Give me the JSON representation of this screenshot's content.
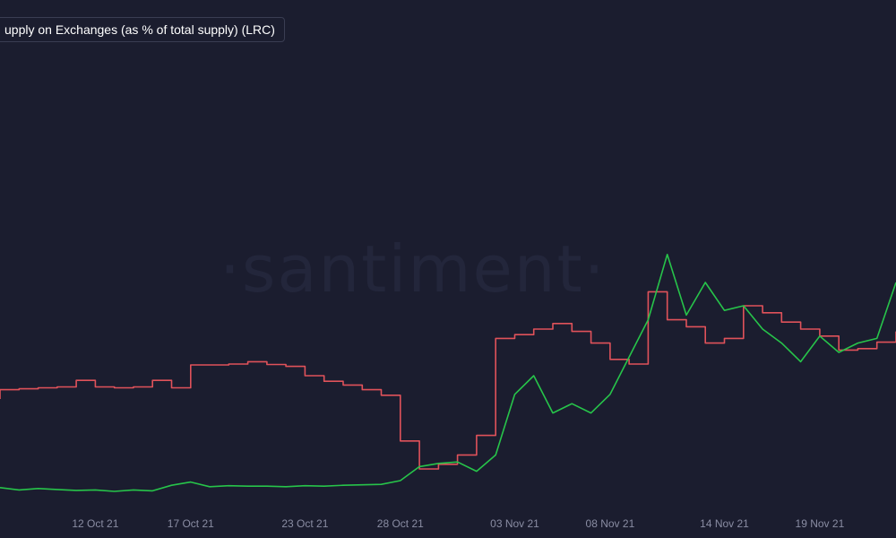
{
  "legend": {
    "label": "upply on Exchanges (as % of total supply) (LRC)"
  },
  "watermark": "·santiment·",
  "colors": {
    "background": "#1b1d2f",
    "price_line": "#27c44a",
    "supply_line": "#e0525a",
    "tick_text": "#8a8da3"
  },
  "chart_data": {
    "type": "line",
    "title": "",
    "x_ticks": [
      "12 Oct 21",
      "17 Oct 21",
      "23 Oct 21",
      "28 Oct 21",
      "03 Nov 21",
      "08 Nov 21",
      "14 Nov 21",
      "19 Nov 21"
    ],
    "x_range": [
      "2021-10-07",
      "2021-11-23"
    ],
    "series": [
      {
        "name": "",
        "color": "#e0525a",
        "shape": "step",
        "unit": "% of total supply (relative)",
        "points": [
          [
            "2021-10-07",
            0.25
          ],
          [
            "2021-10-07",
            0.27
          ],
          [
            "2021-10-08",
            0.27
          ],
          [
            "2021-10-08",
            0.272
          ],
          [
            "2021-10-09",
            0.272
          ],
          [
            "2021-10-09",
            0.274
          ],
          [
            "2021-10-10",
            0.274
          ],
          [
            "2021-10-10",
            0.276
          ],
          [
            "2021-10-11",
            0.276
          ],
          [
            "2021-10-11",
            0.29
          ],
          [
            "2021-10-11",
            0.29
          ],
          [
            "2021-10-12",
            0.29
          ],
          [
            "2021-10-12",
            0.276
          ],
          [
            "2021-10-13",
            0.276
          ],
          [
            "2021-10-13",
            0.274
          ],
          [
            "2021-10-14",
            0.274
          ],
          [
            "2021-10-14",
            0.276
          ],
          [
            "2021-10-15",
            0.276
          ],
          [
            "2021-10-15",
            0.29
          ],
          [
            "2021-10-16",
            0.29
          ],
          [
            "2021-10-16",
            0.274
          ],
          [
            "2021-10-17",
            0.274
          ],
          [
            "2021-10-17",
            0.323
          ],
          [
            "2021-10-19",
            0.323
          ],
          [
            "2021-10-19",
            0.325
          ],
          [
            "2021-10-20",
            0.325
          ],
          [
            "2021-10-20",
            0.33
          ],
          [
            "2021-10-21",
            0.33
          ],
          [
            "2021-10-21",
            0.324
          ],
          [
            "2021-10-22",
            0.324
          ],
          [
            "2021-10-22",
            0.32
          ],
          [
            "2021-10-23",
            0.32
          ],
          [
            "2021-10-23",
            0.3
          ],
          [
            "2021-10-24",
            0.3
          ],
          [
            "2021-10-24",
            0.288
          ],
          [
            "2021-10-25",
            0.288
          ],
          [
            "2021-10-25",
            0.28
          ],
          [
            "2021-10-26",
            0.28
          ],
          [
            "2021-10-26",
            0.27
          ],
          [
            "2021-10-27",
            0.27
          ],
          [
            "2021-10-27",
            0.258
          ],
          [
            "2021-10-28",
            0.258
          ],
          [
            "2021-10-28",
            0.16
          ],
          [
            "2021-10-29",
            0.16
          ],
          [
            "2021-10-29",
            0.1
          ],
          [
            "2021-10-30",
            0.1
          ],
          [
            "2021-10-30",
            0.11
          ],
          [
            "2021-10-31",
            0.11
          ],
          [
            "2021-10-31",
            0.13
          ],
          [
            "2021-11-01",
            0.13
          ],
          [
            "2021-11-01",
            0.172
          ],
          [
            "2021-11-02",
            0.172
          ],
          [
            "2021-11-02",
            0.38
          ],
          [
            "2021-11-03",
            0.38
          ],
          [
            "2021-11-03",
            0.388
          ],
          [
            "2021-11-04",
            0.388
          ],
          [
            "2021-11-04",
            0.4
          ],
          [
            "2021-11-05",
            0.4
          ],
          [
            "2021-11-05",
            0.412
          ],
          [
            "2021-11-06",
            0.412
          ],
          [
            "2021-11-06",
            0.395
          ],
          [
            "2021-11-07",
            0.395
          ],
          [
            "2021-11-07",
            0.37
          ],
          [
            "2021-11-08",
            0.37
          ],
          [
            "2021-11-08",
            0.335
          ],
          [
            "2021-11-09",
            0.335
          ],
          [
            "2021-11-09",
            0.325
          ],
          [
            "2021-11-10",
            0.325
          ],
          [
            "2021-11-10",
            0.48
          ],
          [
            "2021-11-11",
            0.48
          ],
          [
            "2021-11-11",
            0.42
          ],
          [
            "2021-11-12",
            0.42
          ],
          [
            "2021-11-12",
            0.405
          ],
          [
            "2021-11-13",
            0.405
          ],
          [
            "2021-11-13",
            0.37
          ],
          [
            "2021-11-14",
            0.37
          ],
          [
            "2021-11-14",
            0.38
          ],
          [
            "2021-11-15",
            0.38
          ],
          [
            "2021-11-15",
            0.45
          ],
          [
            "2021-11-16",
            0.45
          ],
          [
            "2021-11-16",
            0.435
          ],
          [
            "2021-11-17",
            0.435
          ],
          [
            "2021-11-17",
            0.415
          ],
          [
            "2021-11-18",
            0.415
          ],
          [
            "2021-11-18",
            0.4
          ],
          [
            "2021-11-19",
            0.4
          ],
          [
            "2021-11-19",
            0.385
          ],
          [
            "2021-11-20",
            0.385
          ],
          [
            "2021-11-20",
            0.355
          ],
          [
            "2021-11-21",
            0.355
          ],
          [
            "2021-11-21",
            0.358
          ],
          [
            "2021-11-22",
            0.358
          ],
          [
            "2021-11-22",
            0.372
          ],
          [
            "2021-11-23",
            0.372
          ],
          [
            "2021-11-23",
            0.395
          ]
        ]
      },
      {
        "name": "",
        "color": "#27c44a",
        "shape": "line",
        "unit": "price (relative)",
        "points": [
          [
            "2021-10-07",
            0.06
          ],
          [
            "2021-10-08",
            0.055
          ],
          [
            "2021-10-09",
            0.058
          ],
          [
            "2021-10-10",
            0.056
          ],
          [
            "2021-10-11",
            0.054
          ],
          [
            "2021-10-12",
            0.055
          ],
          [
            "2021-10-13",
            0.052
          ],
          [
            "2021-10-14",
            0.055
          ],
          [
            "2021-10-15",
            0.053
          ],
          [
            "2021-10-16",
            0.065
          ],
          [
            "2021-10-17",
            0.072
          ],
          [
            "2021-10-18",
            0.062
          ],
          [
            "2021-10-19",
            0.064
          ],
          [
            "2021-10-20",
            0.063
          ],
          [
            "2021-10-21",
            0.063
          ],
          [
            "2021-10-22",
            0.062
          ],
          [
            "2021-10-23",
            0.064
          ],
          [
            "2021-10-24",
            0.063
          ],
          [
            "2021-10-25",
            0.065
          ],
          [
            "2021-10-26",
            0.066
          ],
          [
            "2021-10-27",
            0.067
          ],
          [
            "2021-10-28",
            0.075
          ],
          [
            "2021-10-29",
            0.105
          ],
          [
            "2021-10-30",
            0.112
          ],
          [
            "2021-10-31",
            0.115
          ],
          [
            "2021-11-01",
            0.095
          ],
          [
            "2021-11-02",
            0.13
          ],
          [
            "2021-11-03",
            0.26
          ],
          [
            "2021-11-04",
            0.3
          ],
          [
            "2021-11-05",
            0.22
          ],
          [
            "2021-11-06",
            0.24
          ],
          [
            "2021-11-07",
            0.22
          ],
          [
            "2021-11-08",
            0.26
          ],
          [
            "2021-11-09",
            0.34
          ],
          [
            "2021-11-10",
            0.42
          ],
          [
            "2021-11-11",
            0.56
          ],
          [
            "2021-11-12",
            0.43
          ],
          [
            "2021-11-13",
            0.5
          ],
          [
            "2021-11-14",
            0.44
          ],
          [
            "2021-11-15",
            0.45
          ],
          [
            "2021-11-16",
            0.4
          ],
          [
            "2021-11-17",
            0.37
          ],
          [
            "2021-11-18",
            0.33
          ],
          [
            "2021-11-19",
            0.385
          ],
          [
            "2021-11-20",
            0.35
          ],
          [
            "2021-11-21",
            0.37
          ],
          [
            "2021-11-22",
            0.38
          ],
          [
            "2021-11-23",
            0.5
          ]
        ]
      }
    ],
    "grid": false,
    "legend_position": "top-left"
  }
}
